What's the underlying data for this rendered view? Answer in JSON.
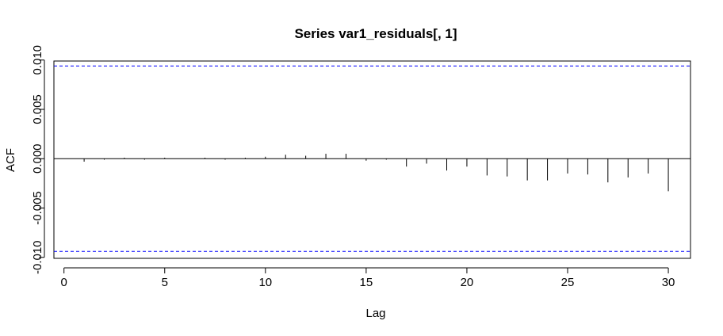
{
  "chart_data": {
    "type": "bar",
    "title": "Series var1_residuals[, 1]",
    "xlabel": "Lag",
    "ylabel": "ACF",
    "xlim": [
      -0.5,
      31.1
    ],
    "ylim": [
      -0.0101,
      0.0099
    ],
    "x_ticks": [
      0,
      5,
      10,
      15,
      20,
      25,
      30
    ],
    "x_tick_labels": [
      "0",
      "5",
      "10",
      "15",
      "20",
      "25",
      "30"
    ],
    "y_ticks": [
      -0.01,
      -0.005,
      0.0,
      0.005,
      0.01
    ],
    "y_tick_labels": [
      "-0.010",
      "-0.005",
      "0.000",
      "0.005",
      "0.010"
    ],
    "lags": [
      1,
      2,
      3,
      4,
      5,
      6,
      7,
      8,
      9,
      10,
      11,
      12,
      13,
      14,
      15,
      16,
      17,
      18,
      19,
      20,
      21,
      22,
      23,
      24,
      25,
      26,
      27,
      28,
      29,
      30
    ],
    "acf": [
      -0.0003,
      -0.0001,
      0.0001,
      -0.0001,
      0.0001,
      0,
      0.0001,
      -0.0001,
      0.0001,
      0.0002,
      0.0004,
      0.0003,
      0.0005,
      0.0005,
      -0.0002,
      -0.0001,
      -0.0008,
      -0.0005,
      -0.0012,
      -0.0008,
      -0.0017,
      -0.0018,
      -0.0022,
      -0.0022,
      -0.0015,
      -0.0016,
      -0.0024,
      -0.0019,
      -0.0015,
      -0.0033
    ],
    "confidence_bounds": [
      0.0094,
      -0.0094
    ],
    "confidence_color": "#0000ff",
    "grid": false,
    "legend": "none"
  }
}
